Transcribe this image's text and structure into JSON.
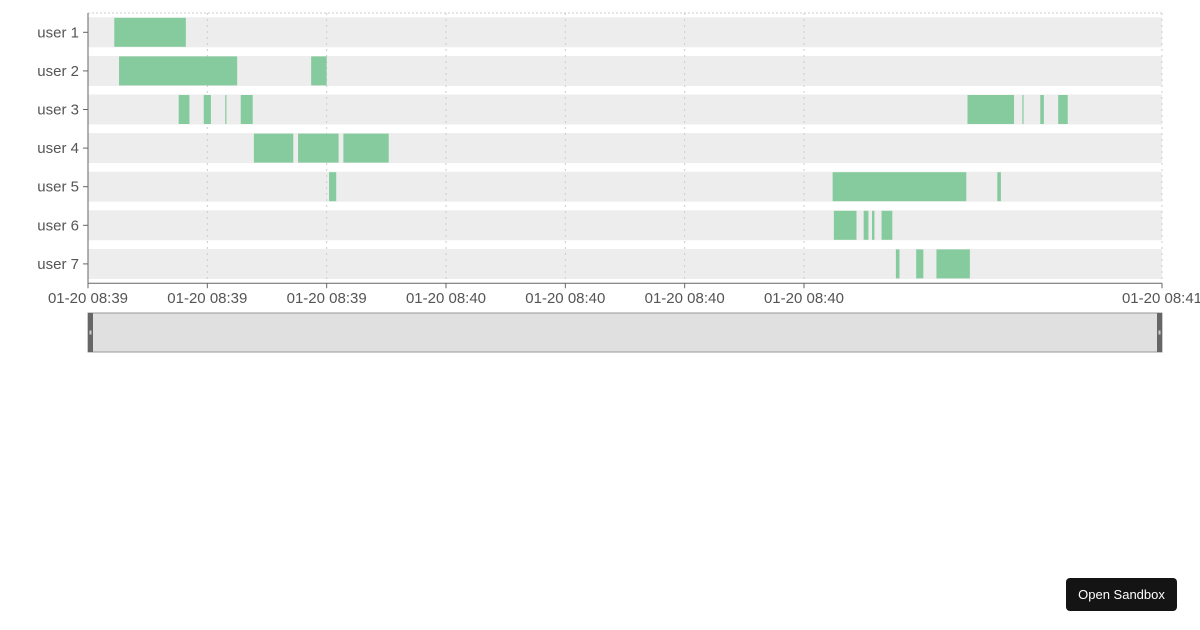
{
  "chart_data": {
    "type": "bar",
    "orientation": "horizontal-timeline",
    "categories": [
      "user 1",
      "user 2",
      "user 3",
      "user 4",
      "user 5",
      "user 6",
      "user 7"
    ],
    "x_tick_labels": [
      "01-20 08:39",
      "01-20 08:39",
      "01-20 08:39",
      "01-20 08:40",
      "01-20 08:40",
      "01-20 08:40",
      "01-20 08:40",
      "01-20 08:41"
    ],
    "x_tick_positions": [
      0,
      1,
      2,
      3,
      4,
      5,
      6,
      9
    ],
    "xlim": [
      0,
      9
    ],
    "series": [
      {
        "segments": [
          {
            "row": 0,
            "start": 0.22,
            "end": 0.82
          },
          {
            "row": 1,
            "start": 0.26,
            "end": 1.25
          },
          {
            "row": 1,
            "start": 1.87,
            "end": 2.0
          },
          {
            "row": 2,
            "start": 0.76,
            "end": 0.85
          },
          {
            "row": 2,
            "start": 0.97,
            "end": 1.03
          },
          {
            "row": 2,
            "start": 1.15,
            "end": 1.16
          },
          {
            "row": 2,
            "start": 1.28,
            "end": 1.38
          },
          {
            "row": 2,
            "start": 7.37,
            "end": 7.76
          },
          {
            "row": 2,
            "start": 7.83,
            "end": 7.84
          },
          {
            "row": 2,
            "start": 7.98,
            "end": 8.01
          },
          {
            "row": 2,
            "start": 8.13,
            "end": 8.21
          },
          {
            "row": 3,
            "start": 1.39,
            "end": 1.72
          },
          {
            "row": 3,
            "start": 1.76,
            "end": 2.1
          },
          {
            "row": 3,
            "start": 2.14,
            "end": 2.52
          },
          {
            "row": 4,
            "start": 2.02,
            "end": 2.08
          },
          {
            "row": 4,
            "start": 6.24,
            "end": 7.36
          },
          {
            "row": 4,
            "start": 7.62,
            "end": 7.65
          },
          {
            "row": 5,
            "start": 6.25,
            "end": 6.44
          },
          {
            "row": 5,
            "start": 6.5,
            "end": 6.54
          },
          {
            "row": 5,
            "start": 6.57,
            "end": 6.59
          },
          {
            "row": 5,
            "start": 6.65,
            "end": 6.74
          },
          {
            "row": 6,
            "start": 6.77,
            "end": 6.8
          },
          {
            "row": 6,
            "start": 6.94,
            "end": 7.0
          },
          {
            "row": 6,
            "start": 7.11,
            "end": 7.39
          }
        ]
      }
    ],
    "grid": true,
    "colors": {
      "bar": "#86cb9e",
      "track": "#ededed",
      "grid": "#cccccc",
      "text": "#555555"
    }
  },
  "data_zoom": {
    "range": [
      0,
      100
    ],
    "fill": "#e0e0e0",
    "border": "#999999",
    "handle": "#666666"
  },
  "sandbox_button": {
    "label": "Open Sandbox"
  }
}
